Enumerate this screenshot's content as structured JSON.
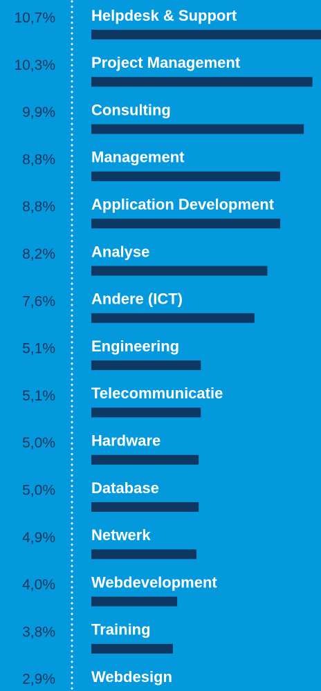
{
  "chart_data": {
    "type": "bar",
    "orientation": "horizontal",
    "categories": [
      "Helpdesk & Support",
      "Project Management",
      "Consulting",
      "Management",
      "Application Development",
      "Analyse",
      "Andere (ICT)",
      "Engineering",
      "Telecommunicatie",
      "Hardware",
      "Database",
      "Netwerk",
      "Webdevelopment",
      "Training",
      "Webdesign"
    ],
    "values": [
      10.7,
      10.3,
      9.9,
      8.8,
      8.8,
      8.2,
      7.6,
      5.1,
      5.1,
      5.0,
      5.0,
      4.9,
      4.0,
      3.8,
      2.9
    ],
    "value_labels": [
      "10,7%",
      "10,3%",
      "9,9%",
      "8,8%",
      "8,8%",
      "8,2%",
      "7,6%",
      "5,1%",
      "5,1%",
      "5,0%",
      "5,0%",
      "4,9%",
      "4,0%",
      "3,8%",
      "2,9%"
    ],
    "color": "#0d3864"
  }
}
